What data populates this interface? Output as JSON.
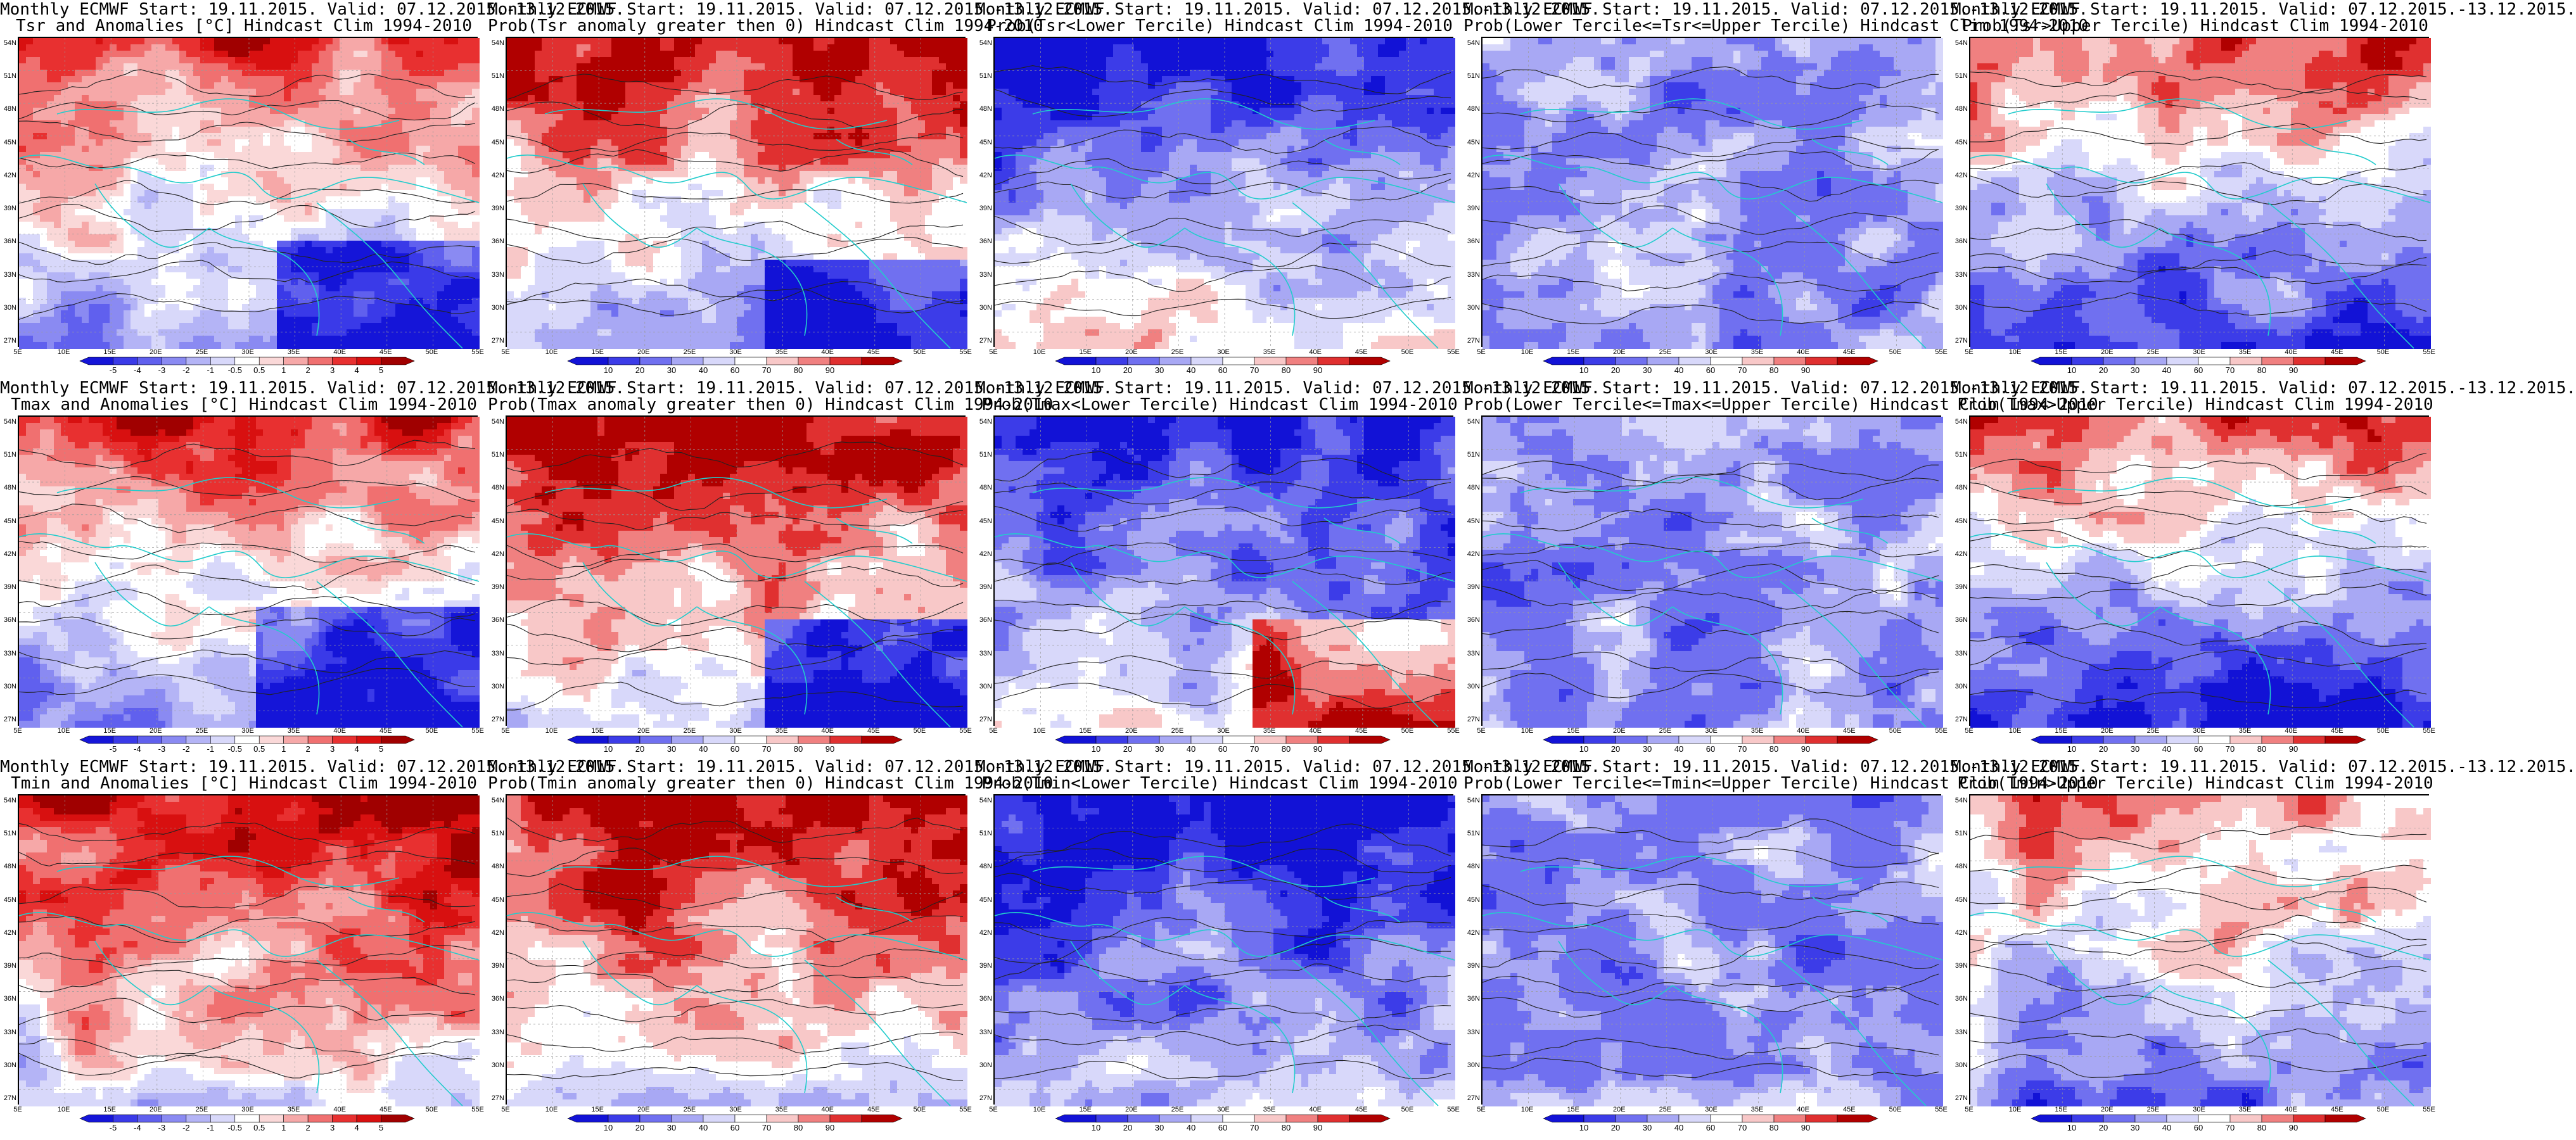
{
  "figure": {
    "rows": [
      {
        "variable": "Tsr",
        "panels": [
          {
            "title1": "Monthly ECMWF Start: 19.11.2015. Valid: 07.12.2015.-13.12.2015.",
            "title2": "Tsr and Anomalies [°C] Hindcast Clim 1994-2010",
            "kind": "anomaly",
            "pattern": "anom_tsr"
          },
          {
            "title1": "Monthly ECMWF Start: 19.11.2015. Valid: 07.12.2015.-13.12.2015.",
            "title2": "Prob(Tsr anomaly greater then 0) Hindcast Clim 1994-2010",
            "kind": "prob",
            "pattern": "pos_tsr"
          },
          {
            "title1": "Monthly ECMWF Start: 19.11.2015. Valid: 07.12.2015.-13.12.2015.",
            "title2": "Prob(Tsr<Lower Tercile) Hindcast Clim 1994-2010",
            "kind": "prob",
            "pattern": "lower_tsr"
          },
          {
            "title1": "Monthly ECMWF Start: 19.11.2015. Valid: 07.12.2015.-13.12.2015.",
            "title2": "Prob(Lower Tercile<=Tsr<=Upper Tercile) Hindcast Clim 1994-2010",
            "kind": "prob",
            "pattern": "middle"
          },
          {
            "title1": "Monthly ECMWF Start: 19.11.2015. Valid: 07.12.2015.-13.12.2015.",
            "title2": "Prob(Tsr>Upper Tercile) Hindcast Clim 1994-2010",
            "kind": "prob",
            "pattern": "upper_tsr"
          }
        ]
      },
      {
        "variable": "Tmax",
        "panels": [
          {
            "title1": "Monthly ECMWF Start: 19.11.2015. Valid: 07.12.2015.-13.12.2015.",
            "title2": "Tmax and Anomalies [°C] Hindcast Clim 1994-2010",
            "kind": "anomaly",
            "pattern": "anom_tmax"
          },
          {
            "title1": "Monthly ECMWF Start: 19.11.2015. Valid: 07.12.2015.-13.12.2015.",
            "title2": "Prob(Tmax anomaly greater then 0) Hindcast Clim 1994-2010",
            "kind": "prob",
            "pattern": "pos_tmax"
          },
          {
            "title1": "Monthly ECMWF Start: 19.11.2015. Valid: 07.12.2015.-13.12.2015.",
            "title2": "Prob(Tmax<Lower Tercile) Hindcast Clim 1994-2010",
            "kind": "prob",
            "pattern": "lower_tmax"
          },
          {
            "title1": "Monthly ECMWF Start: 19.11.2015. Valid: 07.12.2015.-13.12.2015.",
            "title2": "Prob(Lower Tercile<=Tmax<=Upper Tercile) Hindcast Clim 1994-2010",
            "kind": "prob",
            "pattern": "middle"
          },
          {
            "title1": "Monthly ECMWF Start: 19.11.2015. Valid: 07.12.2015.-13.12.2015.",
            "title2": "Prob(Tmax>Upper Tercile) Hindcast Clim 1994-2010",
            "kind": "prob",
            "pattern": "upper_tmax"
          }
        ]
      },
      {
        "variable": "Tmin",
        "panels": [
          {
            "title1": "Monthly ECMWF Start: 19.11.2015. Valid: 07.12.2015.-13.12.2015.",
            "title2": "Tmin and Anomalies [°C] Hindcast Clim 1994-2010",
            "kind": "anomaly",
            "pattern": "anom_tmin"
          },
          {
            "title1": "Monthly ECMWF Start: 19.11.2015. Valid: 07.12.2015.-13.12.2015.",
            "title2": "Prob(Tmin anomaly greater then 0) Hindcast Clim 1994-2010",
            "kind": "prob",
            "pattern": "pos_tmin"
          },
          {
            "title1": "Monthly ECMWF Start: 19.11.2015. Valid: 07.12.2015.-13.12.2015.",
            "title2": "Prob(Tmin<Lower Tercile) Hindcast Clim 1994-2010",
            "kind": "prob",
            "pattern": "lower_tmin"
          },
          {
            "title1": "Monthly ECMWF Start: 19.11.2015. Valid: 07.12.2015.-13.12.2015.",
            "title2": "Prob(Lower Tercile<=Tmin<=Upper Tercile) Hindcast Clim 1994-2010",
            "kind": "prob",
            "pattern": "middle"
          },
          {
            "title1": "Monthly ECMWF Start: 19.11.2015. Valid: 07.12.2015.-13.12.2015.",
            "title2": "Prob(Tmin>Upper Tercile) Hindcast Clim 1994-2010",
            "kind": "prob",
            "pattern": "upper_tmin"
          }
        ]
      }
    ],
    "lat_labels": [
      "54N",
      "51N",
      "48N",
      "45N",
      "42N",
      "39N",
      "36N",
      "33N",
      "30N",
      "27N"
    ],
    "lon_labels": [
      "5E",
      "10E",
      "15E",
      "20E",
      "25E",
      "30E",
      "35E",
      "40E",
      "45E",
      "50E",
      "55E"
    ],
    "anomaly_colorbar": {
      "ticks": [
        "-5",
        "-4",
        "-3",
        "-2",
        "-1",
        "-0.5",
        "0.5",
        "1",
        "2",
        "3",
        "4",
        "5"
      ],
      "colors": [
        "#1515d8",
        "#3a3ae8",
        "#6060ee",
        "#8a8af2",
        "#b4b4f6",
        "#d8d8fa",
        "#ffffff",
        "#fad8d8",
        "#f6a8a8",
        "#f07070",
        "#e83030",
        "#d81010",
        "#a00000"
      ]
    },
    "prob_colorbar": {
      "ticks": [
        "10",
        "20",
        "30",
        "40",
        "60",
        "70",
        "80",
        "90"
      ],
      "colors": [
        "#1212d6",
        "#3c3ce8",
        "#7070f0",
        "#a8a8f4",
        "#d8d8fa",
        "#ffffff",
        "#f8c8c8",
        "#f08080",
        "#e03030",
        "#b00000"
      ]
    },
    "colors": {
      "contour": "#222222",
      "coast": "#22cccc",
      "grid": "#9a9a9a"
    }
  }
}
